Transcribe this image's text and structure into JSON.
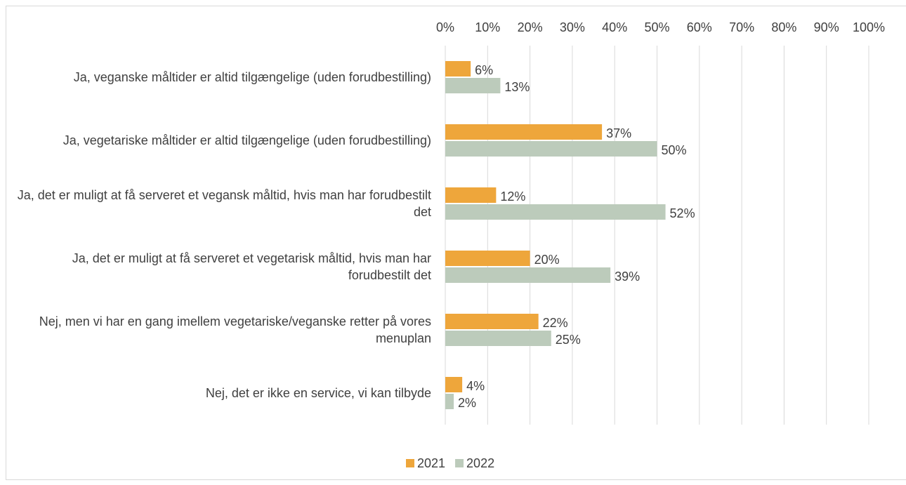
{
  "chart_data": {
    "type": "bar",
    "orientation": "horizontal",
    "categories": [
      "Ja, veganske måltider er altid tilgængelige (uden forudbestilling)",
      "Ja, vegetariske måltider er altid tilgængelige (uden forudbestilling)",
      "Ja, det er muligt at få serveret et vegansk måltid, hvis man har forudbestilt det",
      "Ja, det er muligt at få serveret et vegetarisk måltid, hvis man har forudbestilt det",
      "Nej, men vi har en gang imellem vegetariske/veganske retter på vores menuplan",
      "Nej, det er ikke en service, vi kan tilbyde"
    ],
    "series": [
      {
        "name": "2021",
        "color": "#eea63b",
        "values": [
          6,
          37,
          12,
          20,
          22,
          4
        ],
        "value_labels": [
          "6%",
          "37%",
          "12%",
          "20%",
          "22%",
          "4%"
        ]
      },
      {
        "name": "2022",
        "color": "#bccbbb",
        "values": [
          13,
          50,
          52,
          39,
          25,
          2
        ],
        "value_labels": [
          "13%",
          "50%",
          "52%",
          "39%",
          "25%",
          "2%"
        ]
      }
    ],
    "xlim": [
      0,
      100
    ],
    "xticks": [
      {
        "value": 0,
        "label": "0%"
      },
      {
        "value": 10,
        "label": "10%"
      },
      {
        "value": 20,
        "label": "20%"
      },
      {
        "value": 30,
        "label": "30%"
      },
      {
        "value": 40,
        "label": "40%"
      },
      {
        "value": 50,
        "label": "50%"
      },
      {
        "value": 60,
        "label": "60%"
      },
      {
        "value": 70,
        "label": "70%"
      },
      {
        "value": 80,
        "label": "80%"
      },
      {
        "value": 90,
        "label": "90%"
      },
      {
        "value": 100,
        "label": "100%"
      }
    ],
    "grid": true,
    "legend": "bottom"
  }
}
